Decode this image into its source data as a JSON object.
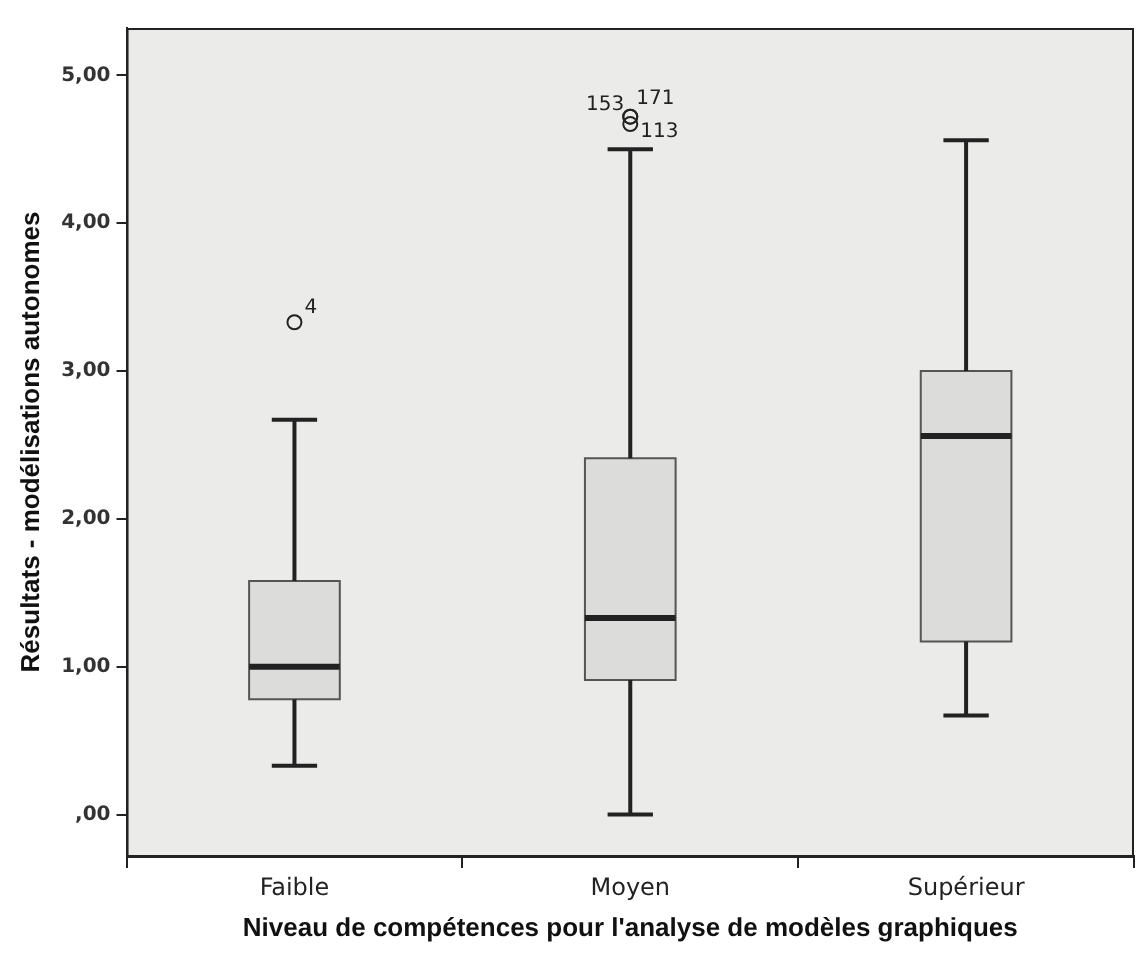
{
  "chart_data": {
    "type": "box",
    "xlabel": "Niveau de compétences pour l'analyse de modèles graphiques",
    "ylabel": "Résultats - modélisations autonomes",
    "categories": [
      "Faible",
      "Moyen",
      "Supérieur"
    ],
    "color": "#dcdddb",
    "boxes": [
      {
        "low": 0.33,
        "q1": 0.78,
        "median": 1.0,
        "q3": 1.58,
        "high": 2.67,
        "outliers": [
          3.33
        ]
      },
      {
        "low": 0.0,
        "q1": 0.91,
        "median": 1.33,
        "q3": 2.41,
        "high": 4.5,
        "outliers": [
          4.72,
          4.72,
          4.67
        ]
      },
      {
        "low": 0.67,
        "q1": 1.17,
        "median": 2.56,
        "q3": 3.0,
        "high": 4.56
      }
    ],
    "annotations": [
      "4",
      "153",
      "171",
      "113"
    ],
    "ylim": [
      -0.28,
      5.32
    ],
    "yticks": [
      {
        "value": 0,
        "label": ",00"
      },
      {
        "value": 1,
        "label": "1,00"
      },
      {
        "value": 2,
        "label": "2,00"
      },
      {
        "value": 3,
        "label": "3,00"
      },
      {
        "value": 4,
        "label": "4,00"
      },
      {
        "value": 5,
        "label": "5,00"
      }
    ],
    "grid": false,
    "legend": false
  }
}
